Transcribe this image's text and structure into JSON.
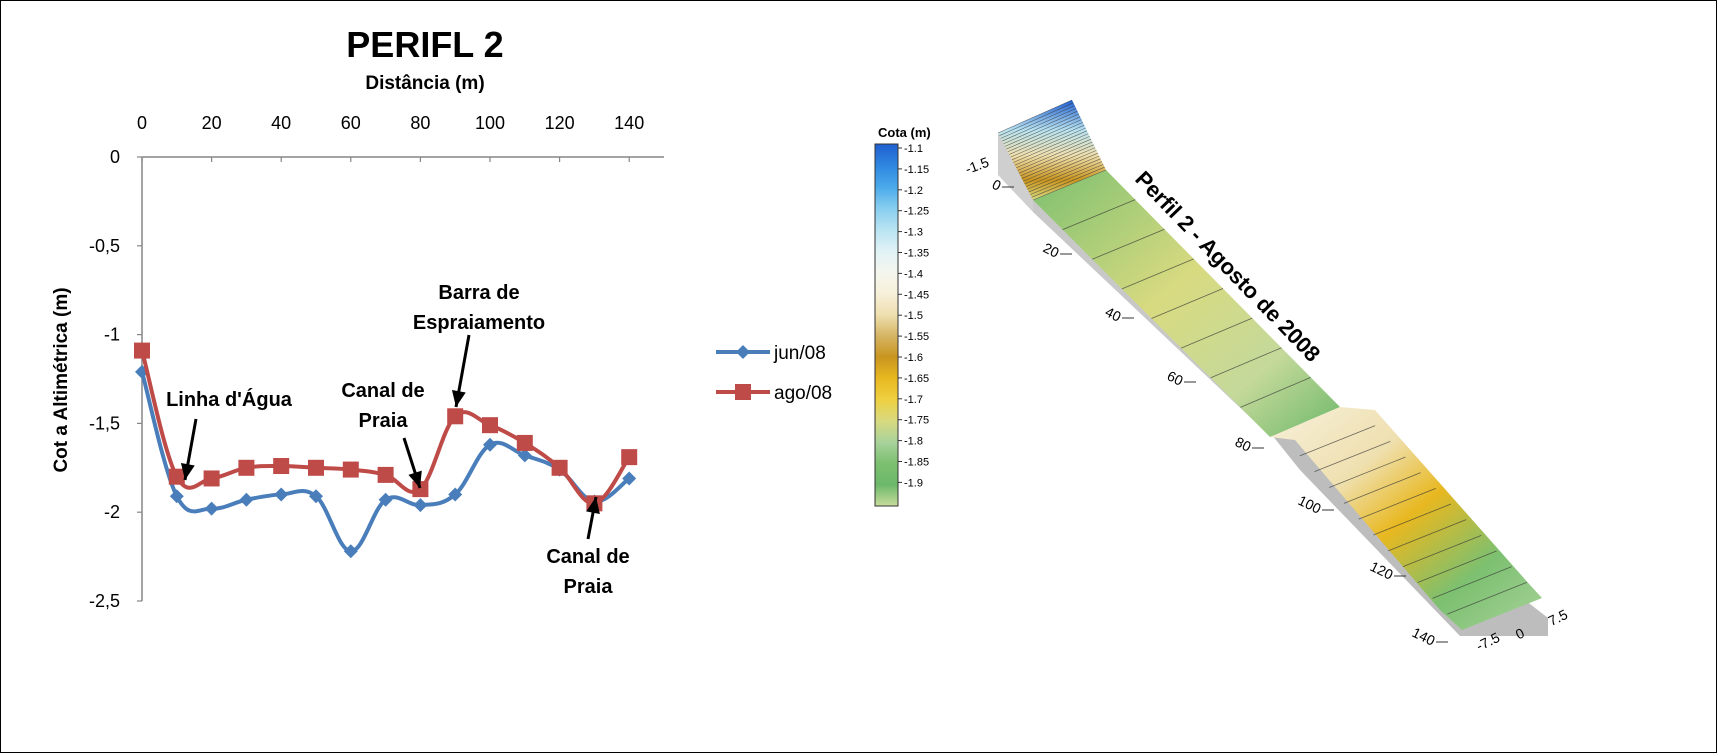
{
  "chart_data": [
    {
      "type": "line",
      "title": "PERIFL 2",
      "xlabel": "Distância (m)",
      "ylabel": "Cot a Altimétrica (m)",
      "x_axis_position": "top",
      "xlim": [
        0,
        150
      ],
      "ylim": [
        -2.5,
        0
      ],
      "x_ticks": [
        "0",
        "20",
        "40",
        "60",
        "80",
        "100",
        "120",
        "140"
      ],
      "x_tick_values": [
        0,
        20,
        40,
        60,
        80,
        100,
        120,
        140
      ],
      "y_ticks": [
        "0",
        "-0,5",
        "-1",
        "-1,5",
        "-2",
        "-2,5"
      ],
      "y_tick_values": [
        0,
        -0.5,
        -1,
        -1.5,
        -2,
        -2.5
      ],
      "x": [
        0,
        10,
        20,
        30,
        40,
        50,
        60,
        70,
        80,
        90,
        100,
        110,
        120,
        130,
        140
      ],
      "series": [
        {
          "name": "jun/08",
          "color": "#4a7ebb",
          "marker": "diamond",
          "values": [
            -1.21,
            -1.91,
            -1.98,
            -1.93,
            -1.9,
            -1.91,
            -2.22,
            -1.93,
            -1.96,
            -1.9,
            -1.62,
            -1.68,
            -1.76,
            -1.94,
            -1.81
          ]
        },
        {
          "name": "ago/08",
          "color": "#be4b48",
          "marker": "square",
          "values": [
            -1.09,
            -1.8,
            -1.81,
            -1.75,
            -1.74,
            -1.75,
            -1.76,
            -1.79,
            -1.87,
            -1.46,
            -1.51,
            -1.61,
            -1.75,
            -1.95,
            -1.69
          ]
        }
      ],
      "legend_position": "right",
      "annotations": [
        {
          "lines": [
            "Linha d'Água"
          ],
          "x": 13,
          "y": -1.82
        },
        {
          "lines": [
            "Canal de",
            "Praia"
          ],
          "x": 80,
          "y": -1.87
        },
        {
          "lines": [
            "Barra de",
            "Espraiamento"
          ],
          "x": 91,
          "y": -1.44
        },
        {
          "lines": [
            "Canal de",
            "Praia"
          ],
          "x": 130,
          "y": -1.95
        }
      ]
    },
    {
      "type": "surface",
      "title": "Perfil 2 - Agosto de 2008",
      "colorbar_label": "Cota (m)",
      "colorbar_ticks": [
        "-1.1",
        "-1.15",
        "-1.2",
        "-1.25",
        "-1.3",
        "-1.35",
        "-1.4",
        "-1.45",
        "-1.5",
        "-1.55",
        "-1.6",
        "-1.65",
        "-1.7",
        "-1.75",
        "-1.8",
        "-1.85",
        "-1.9"
      ],
      "colorbar_colors": [
        "#1f5fd0",
        "#2e86e0",
        "#4aa9ea",
        "#86cdef",
        "#b8e3f2",
        "#dff2f6",
        "#f4f6ee",
        "#f7f0da",
        "#efe0b0",
        "#d6b564",
        "#c99520",
        "#e8b820",
        "#efd040",
        "#d8da80",
        "#a8d29a",
        "#7cc070",
        "#6cb86a",
        "#c8dd9c"
      ],
      "y_axis_ticks": [
        "0",
        "20",
        "40",
        "60",
        "80",
        "100",
        "120",
        "140"
      ],
      "z_axis_ticks": [
        "-1.5"
      ],
      "x_axis_ticks": [
        "-7.5",
        "0",
        "7.5"
      ]
    }
  ]
}
